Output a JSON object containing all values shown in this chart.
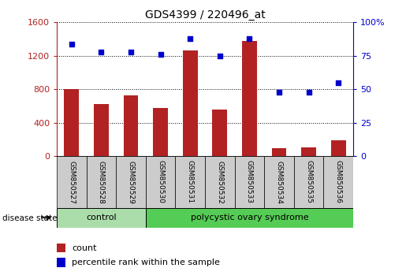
{
  "title": "GDS4399 / 220496_at",
  "samples": [
    "GSM850527",
    "GSM850528",
    "GSM850529",
    "GSM850530",
    "GSM850531",
    "GSM850532",
    "GSM850533",
    "GSM850534",
    "GSM850535",
    "GSM850536"
  ],
  "counts": [
    800,
    620,
    730,
    580,
    1260,
    560,
    1380,
    100,
    110,
    190
  ],
  "percentiles": [
    84,
    78,
    78,
    76,
    88,
    75,
    88,
    48,
    48,
    55
  ],
  "ylim_left": [
    0,
    1600
  ],
  "ylim_right": [
    0,
    100
  ],
  "yticks_left": [
    0,
    400,
    800,
    1200,
    1600
  ],
  "yticks_right": [
    0,
    25,
    50,
    75,
    100
  ],
  "bar_color": "#b22222",
  "dot_color": "#0000cc",
  "control_color": "#aaddaa",
  "pcos_color": "#55cc55",
  "label_bg_color": "#cccccc",
  "control_count": 3,
  "bar_width": 0.5
}
